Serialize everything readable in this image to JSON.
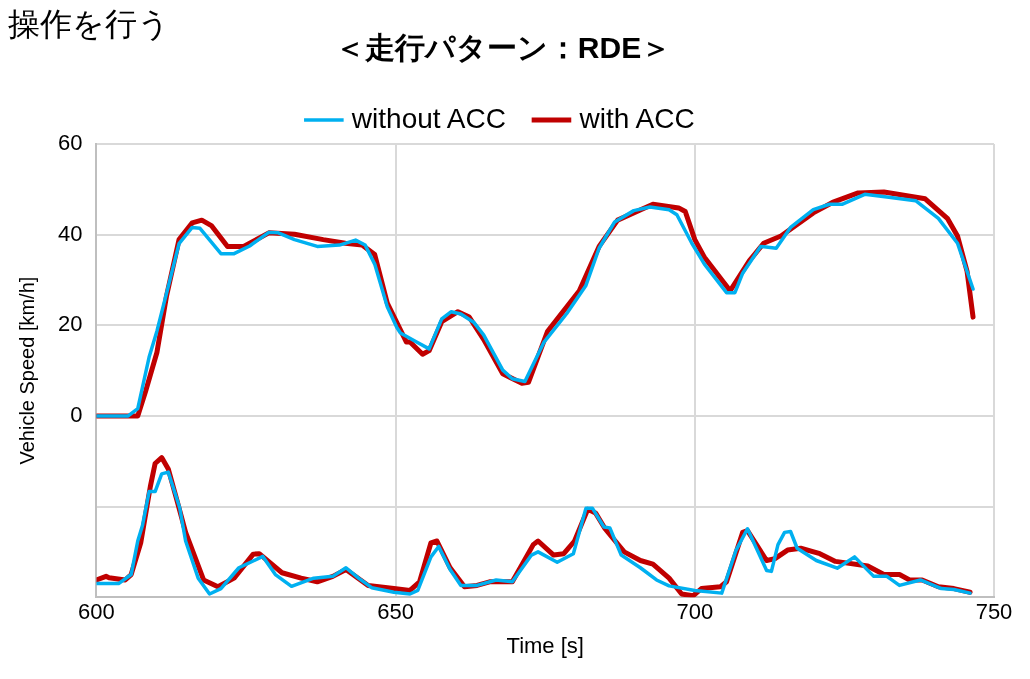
{
  "chart_data": {
    "type": "line",
    "title": "＜走行パターン：RDE＞",
    "annotations": [
      "操作を行う"
    ],
    "xlabel": "Time [s]",
    "ylabel": "Vehicle Speed [km/h]",
    "xlim": [
      600,
      750
    ],
    "xticks": [
      600,
      650,
      700,
      750
    ],
    "ylim": [
      -40,
      60
    ],
    "yticks": [
      {
        "value": -40,
        "label": null
      },
      {
        "value": -20,
        "label": null
      },
      0,
      20,
      40,
      60
    ],
    "grid": true,
    "legend": "top",
    "marker": "none",
    "line_style": "solid",
    "series": [
      {
        "name": "without ACC",
        "color": "#00b0f0",
        "x": [
          600,
          605.3,
          606.9,
          608.8,
          610.1,
          611.7,
          613.8,
          616,
          617.3,
          620.8,
          623,
          625.6,
          628.8,
          630.4,
          633.1,
          636.9,
          640.6,
          643.3,
          644.9,
          646.5,
          648.6,
          650.2,
          650.8,
          653.5,
          655.6,
          657.7,
          659.3,
          660.9,
          663.1,
          664.7,
          667.9,
          669.5,
          671.6,
          674.8,
          678.6,
          681.8,
          684,
          686.6,
          689.8,
          692.5,
          695.7,
          697,
          699.5,
          701.6,
          705.3,
          706.7,
          708,
          711,
          713.6,
          716,
          719.8,
          722.5,
          724.6,
          728.4,
          732.1,
          736.9,
          740.7,
          743.9,
          746.5
        ],
        "values": [
          0,
          0,
          1.6,
          13,
          18.7,
          27,
          38,
          41.6,
          41.4,
          35.8,
          35.8,
          37.5,
          40.5,
          40.4,
          38.9,
          37.4,
          37.7,
          38.8,
          37.7,
          33.5,
          24.1,
          19.5,
          18.3,
          16.3,
          14.8,
          21.4,
          23,
          22.5,
          20.6,
          17.9,
          10.1,
          8.2,
          7.6,
          16.3,
          22.6,
          28.8,
          37,
          42.8,
          45.3,
          46.1,
          45.5,
          44.4,
          38.1,
          33.5,
          27.2,
          27.2,
          31.5,
          37.4,
          37,
          41.6,
          45.5,
          46.7,
          46.7,
          48.9,
          48.3,
          47.5,
          43.6,
          38.1,
          28
        ]
      },
      {
        "name": "with ACC",
        "color": "#c00000",
        "x": [
          600,
          606.9,
          608.2,
          610.1,
          611.7,
          613.8,
          616,
          617.6,
          619.2,
          621.9,
          624.6,
          628.8,
          633.1,
          637.9,
          641.6,
          644.4,
          646.5,
          648.6,
          651.8,
          652.4,
          654.5,
          655.6,
          657.7,
          660.4,
          662.3,
          664.7,
          667.9,
          671.1,
          672.2,
          675.4,
          680.7,
          684,
          687.1,
          693,
          697.3,
          698.4,
          700,
          701.6,
          705.9,
          709.1,
          711.5,
          714.4,
          719.8,
          723,
          727.3,
          731.6,
          738.5,
          742.2,
          743.9,
          745.5,
          746.5
        ],
        "values": [
          0,
          0,
          5.4,
          14,
          26.4,
          38.9,
          42.6,
          43.2,
          42,
          37.4,
          37.4,
          40.4,
          40.1,
          38.9,
          38.1,
          37.7,
          35.6,
          24.9,
          16.3,
          16.3,
          13.6,
          14.4,
          20.8,
          23,
          21.8,
          16.9,
          9.3,
          7.2,
          7.4,
          18.7,
          27.6,
          37.4,
          43.2,
          46.7,
          45.9,
          45.1,
          38.9,
          35,
          27.6,
          34.2,
          38.1,
          39.7,
          44.8,
          47.1,
          49.2,
          49.4,
          47.9,
          43.6,
          39.7,
          31.9,
          21.8
        ]
      },
      {
        "color": "#00b0f0",
        "x": [
          600,
          603.7,
          605.8,
          606.9,
          607.7,
          608.8,
          609.8,
          610.9,
          612,
          613.9,
          614.9,
          617,
          618.9,
          620.8,
          623.8,
          627.8,
          629.9,
          632.6,
          636.3,
          639.5,
          641.7,
          643.8,
          646,
          649.7,
          652.4,
          653.7,
          655.9,
          657.2,
          659.1,
          660.9,
          663.6,
          666.8,
          669.5,
          672.7,
          673.8,
          677,
          679.7,
          681.8,
          682.9,
          684.8,
          685.8,
          687.7,
          690.9,
          693.6,
          695.7,
          700,
          704.5,
          706.9,
          708.8,
          712,
          712.8,
          713.9,
          715,
          716,
          717.1,
          720.3,
          723.8,
          726.7,
          729.9,
          732.1,
          734.2,
          737.7,
          741.2,
          743.3,
          746
        ],
        "values": [
          -37,
          -37,
          -35,
          -27.6,
          -24.1,
          -16.7,
          -16.7,
          -12.8,
          -12.4,
          -20.2,
          -27.6,
          -35.8,
          -39.3,
          -38.1,
          -33.5,
          -31,
          -35,
          -37.6,
          -35.8,
          -35.4,
          -33.5,
          -35.8,
          -37.9,
          -38.9,
          -39.3,
          -38.5,
          -31.1,
          -28.8,
          -33.9,
          -37.4,
          -37.4,
          -36.2,
          -36.6,
          -30.7,
          -30,
          -32.3,
          -30.4,
          -20.4,
          -20.4,
          -24.5,
          -24.7,
          -30.7,
          -33.5,
          -36.2,
          -37.5,
          -38.5,
          -39.1,
          -29.6,
          -24.9,
          -34.1,
          -34.3,
          -28.4,
          -25.7,
          -25.5,
          -29.2,
          -31.9,
          -33.6,
          -31.1,
          -35.4,
          -35.4,
          -37.4,
          -36.2,
          -38.1,
          -38.3,
          -39.1
        ]
      },
      {
        "color": "#c00000",
        "x": [
          600,
          601.6,
          602.1,
          604.8,
          605.8,
          607.4,
          609,
          609.8,
          610.9,
          612,
          613.3,
          614.9,
          617.9,
          620.3,
          623,
          626.2,
          627.2,
          631,
          634.2,
          636.9,
          639.5,
          641.7,
          645.4,
          649.7,
          652.4,
          654,
          655.9,
          656.9,
          659.1,
          661.5,
          663.6,
          665.7,
          669.5,
          673,
          673.8,
          676.4,
          678.1,
          679.9,
          682.1,
          683.4,
          685,
          688.2,
          690.9,
          693,
          695.7,
          697.8,
          699.7,
          701.1,
          704.3,
          705.3,
          708,
          708.8,
          712,
          713.4,
          715.5,
          717.7,
          720.9,
          723.5,
          728.9,
          731.6,
          734.2,
          735.9,
          738,
          740.7,
          743.3,
          746
        ],
        "values": [
          -36.2,
          -35.4,
          -35.7,
          -36.2,
          -35,
          -28,
          -15.6,
          -10.5,
          -9.2,
          -11.7,
          -17.9,
          -25.7,
          -36.2,
          -37.7,
          -35.8,
          -30.5,
          -30.4,
          -34.6,
          -35.8,
          -36.6,
          -35.4,
          -33.9,
          -37.4,
          -38.1,
          -38.5,
          -36.6,
          -28,
          -27.6,
          -33.5,
          -37.7,
          -37.4,
          -36.6,
          -36.6,
          -28.4,
          -27.6,
          -30.7,
          -30.4,
          -27.6,
          -20.6,
          -21.4,
          -24.9,
          -30,
          -31.9,
          -32.7,
          -35.8,
          -39.3,
          -39.7,
          -38.1,
          -37.7,
          -36.6,
          -25.7,
          -25.3,
          -31.9,
          -31.5,
          -29.6,
          -29.2,
          -30.4,
          -32.1,
          -33.1,
          -35,
          -35,
          -36.2,
          -36.2,
          -37.7,
          -38.1,
          -38.9
        ]
      }
    ]
  }
}
